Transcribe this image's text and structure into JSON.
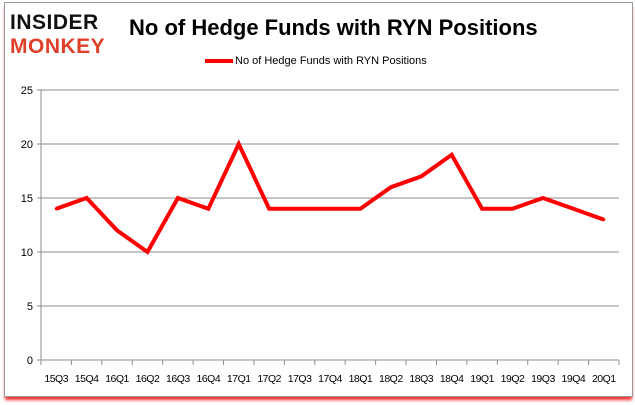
{
  "logo": {
    "line1": "INSIDER",
    "line2": "MONKEY"
  },
  "colors": {
    "line": "#ff0000",
    "logo_top": "#111111",
    "logo_bottom": "#e0402a",
    "grid": "#8c8c8c"
  },
  "chart_data": {
    "type": "line",
    "title": "No of Hedge Funds with RYN Positions",
    "xlabel": "",
    "ylabel": "",
    "legend_position": "top",
    "grid": true,
    "ylim": [
      0,
      25
    ],
    "yticks": [
      0,
      5,
      10,
      15,
      20,
      25
    ],
    "categories": [
      "15Q3",
      "15Q4",
      "16Q1",
      "16Q2",
      "16Q3",
      "16Q4",
      "17Q1",
      "17Q2",
      "17Q3",
      "17Q4",
      "18Q1",
      "18Q2",
      "18Q3",
      "18Q4",
      "19Q1",
      "19Q2",
      "19Q3",
      "19Q4",
      "20Q1"
    ],
    "series": [
      {
        "name": "No of Hedge Funds with RYN Positions",
        "values": [
          14,
          15,
          12,
          10,
          15,
          14,
          20,
          14,
          14,
          14,
          14,
          16,
          17,
          19,
          14,
          14,
          15,
          14,
          13
        ]
      }
    ]
  }
}
